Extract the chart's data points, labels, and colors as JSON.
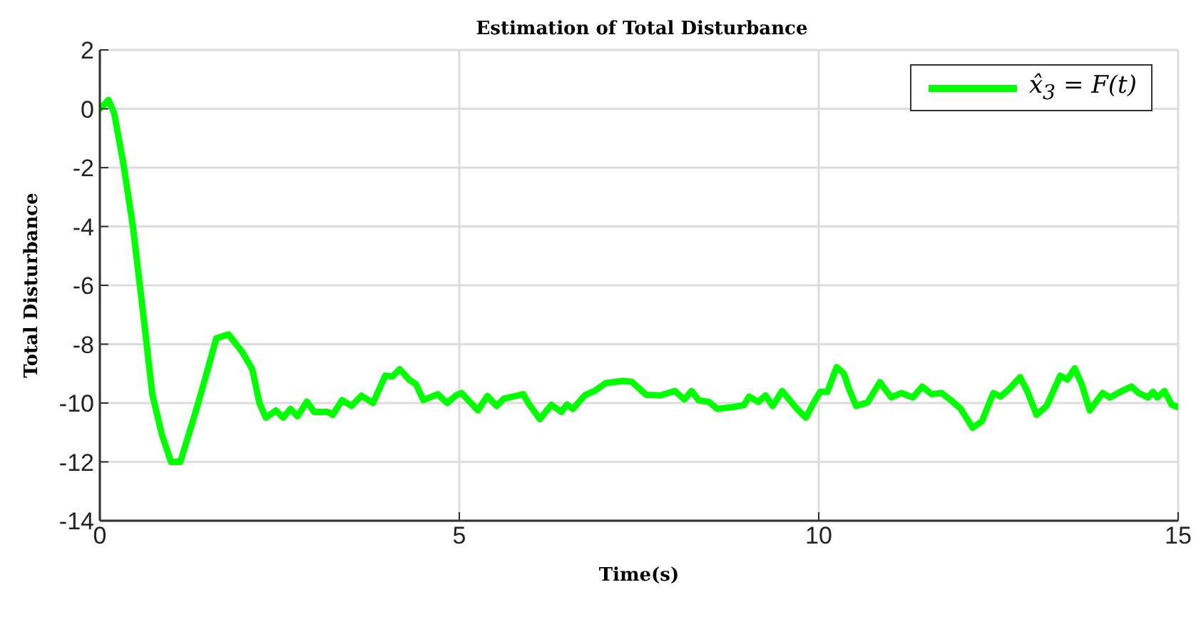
{
  "chart_data": {
    "type": "line",
    "title": "Estimation of Total Disturbance",
    "xlabel": "Time(s)",
    "ylabel": "Total Disturbance",
    "x": [
      0,
      0.03,
      0.12,
      0.2,
      0.33,
      0.46,
      0.6,
      0.73,
      0.86,
      0.99,
      1.12,
      1.32,
      1.45,
      1.62,
      1.79,
      1.98,
      2.12,
      2.22,
      2.31,
      2.45,
      2.55,
      2.65,
      2.75,
      2.88,
      2.98,
      3.17,
      3.24,
      3.37,
      3.5,
      3.64,
      3.8,
      3.97,
      4.07,
      4.17,
      4.3,
      4.4,
      4.5,
      4.7,
      4.83,
      4.96,
      5.03,
      5.26,
      5.39,
      5.52,
      5.62,
      5.89,
      5.96,
      6.12,
      6.28,
      6.42,
      6.5,
      6.58,
      6.75,
      6.88,
      7.04,
      7.28,
      7.4,
      7.6,
      7.8,
      8.0,
      8.13,
      8.23,
      8.33,
      8.47,
      8.59,
      8.8,
      8.96,
      9.03,
      9.16,
      9.26,
      9.36,
      9.49,
      9.69,
      9.82,
      9.92,
      10.02,
      10.12,
      10.25,
      10.35,
      10.42,
      10.52,
      10.68,
      10.85,
      11.01,
      11.15,
      11.31,
      11.44,
      11.57,
      11.71,
      11.84,
      11.97,
      12.14,
      12.27,
      12.43,
      12.53,
      12.66,
      12.8,
      12.9,
      13.03,
      13.17,
      13.36,
      13.46,
      13.56,
      13.66,
      13.77,
      13.95,
      14.05,
      14.22,
      14.35,
      14.45,
      14.58,
      14.65,
      14.71,
      14.81,
      14.91,
      15
    ],
    "series": [
      {
        "name": "x̂$_{3}$ = F(t)",
        "color": "#00ff00",
        "values": [
          0,
          0.07,
          0.3,
          -0.15,
          -1.9,
          -4,
          -6.9,
          -9.7,
          -11.05,
          -12,
          -12,
          -10.4,
          -9.3,
          -7.8,
          -7.67,
          -8.26,
          -8.85,
          -10,
          -10.5,
          -10.25,
          -10.5,
          -10.2,
          -10.45,
          -9.95,
          -10.3,
          -10.3,
          -10.4,
          -9.9,
          -10.1,
          -9.75,
          -10,
          -9.07,
          -9.1,
          -8.85,
          -9.2,
          -9.37,
          -9.9,
          -9.7,
          -10,
          -9.73,
          -9.66,
          -10.25,
          -9.76,
          -10.1,
          -9.85,
          -9.7,
          -10,
          -10.55,
          -10.06,
          -10.3,
          -10.05,
          -10.2,
          -9.73,
          -9.59,
          -9.32,
          -9.25,
          -9.28,
          -9.72,
          -9.74,
          -9.59,
          -9.88,
          -9.59,
          -9.91,
          -9.96,
          -10.2,
          -10.14,
          -10.07,
          -9.78,
          -9.96,
          -9.74,
          -10.1,
          -9.59,
          -10.18,
          -10.5,
          -10.03,
          -9.62,
          -9.62,
          -8.78,
          -9,
          -9.51,
          -10.1,
          -9.98,
          -9.29,
          -9.81,
          -9.66,
          -9.81,
          -9.44,
          -9.7,
          -9.66,
          -9.91,
          -10.18,
          -10.84,
          -10.62,
          -9.66,
          -9.78,
          -9.5,
          -9.12,
          -9.59,
          -10.4,
          -10.1,
          -9.07,
          -9.2,
          -8.82,
          -9.37,
          -10.25,
          -9.66,
          -9.81,
          -9.59,
          -9.44,
          -9.66,
          -9.81,
          -9.62,
          -9.81,
          -9.59,
          -10.06,
          -10.14
        ]
      }
    ],
    "xlim": [
      0,
      15
    ],
    "xticks": [
      0,
      5,
      10,
      15
    ],
    "ylim": [
      -14,
      2
    ],
    "yticks": [
      -14,
      -12,
      -10,
      -8,
      -6,
      -4,
      -2,
      0,
      2
    ],
    "grid": true,
    "legend": "top right",
    "marker": "none",
    "line_style": "solid"
  }
}
